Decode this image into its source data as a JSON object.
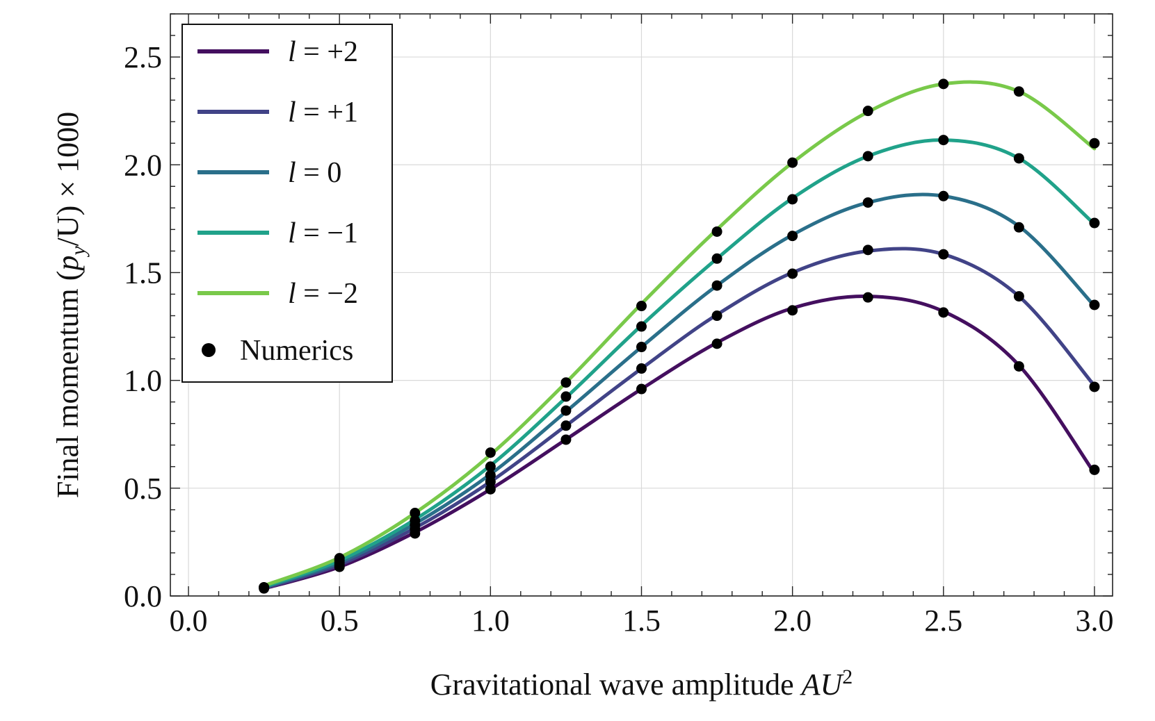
{
  "chart_data": {
    "type": "line",
    "title": "",
    "xlabel": {
      "main": "Gravitational wave amplitude ",
      "var": "AU",
      "sup": "2"
    },
    "ylabel": {
      "main": "Final momentum (",
      "var": "p",
      "sub": "y",
      "rest": "/U) × 1000"
    },
    "xlim": [
      -0.06,
      3.06
    ],
    "ylim": [
      0,
      2.7
    ],
    "xticks": [
      "0.0",
      "0.5",
      "1.0",
      "1.5",
      "2.0",
      "2.5",
      "3.0"
    ],
    "yticks": [
      "0.0",
      "0.5",
      "1.0",
      "1.5",
      "2.0",
      "2.5"
    ],
    "grid": true,
    "legend_position": "top-left",
    "series": [
      {
        "name": "l = +2",
        "label_var": "l",
        "label_rest": " = +2",
        "color": "#440f5f",
        "x": [
          0.25,
          0.5,
          0.75,
          1.0,
          1.25,
          1.5,
          1.75,
          2.0,
          2.25,
          2.5,
          2.75,
          3.0
        ],
        "y": [
          0.034,
          0.135,
          0.295,
          0.495,
          0.726,
          0.96,
          1.175,
          1.335,
          1.39,
          1.32,
          1.07,
          0.57
        ],
        "points": [
          0.04,
          0.135,
          0.29,
          0.495,
          0.725,
          0.96,
          1.17,
          1.325,
          1.385,
          1.315,
          1.065,
          0.585
        ]
      },
      {
        "name": "l = +1",
        "label_var": "l",
        "label_rest": " = +1",
        "color": "#414387",
        "x": [
          0.25,
          0.5,
          0.75,
          1.0,
          1.25,
          1.5,
          1.75,
          2.0,
          2.25,
          2.5,
          2.75,
          3.0
        ],
        "y": [
          0.036,
          0.145,
          0.315,
          0.53,
          0.79,
          1.055,
          1.305,
          1.5,
          1.6,
          1.585,
          1.39,
          0.975
        ],
        "points": [
          0.035,
          0.145,
          0.31,
          0.53,
          0.79,
          1.055,
          1.3,
          1.495,
          1.605,
          1.585,
          1.39,
          0.97
        ]
      },
      {
        "name": "l = 0",
        "label_var": "l",
        "label_rest": " = 0",
        "color": "#2a6f8a",
        "x": [
          0.25,
          0.5,
          0.75,
          1.0,
          1.25,
          1.5,
          1.75,
          2.0,
          2.25,
          2.5,
          2.75,
          3.0
        ],
        "y": [
          0.04,
          0.155,
          0.335,
          0.565,
          0.855,
          1.155,
          1.44,
          1.675,
          1.825,
          1.855,
          1.715,
          1.345
        ],
        "points": [
          0.04,
          0.155,
          0.33,
          0.56,
          0.86,
          1.155,
          1.44,
          1.67,
          1.825,
          1.855,
          1.71,
          1.35
        ]
      },
      {
        "name": "l = −1",
        "label_var": "l",
        "label_rest": " = −1",
        "color": "#20a28a",
        "x": [
          0.25,
          0.5,
          0.75,
          1.0,
          1.25,
          1.5,
          1.75,
          2.0,
          2.25,
          2.5,
          2.75,
          3.0
        ],
        "y": [
          0.043,
          0.165,
          0.355,
          0.605,
          0.92,
          1.255,
          1.565,
          1.845,
          2.04,
          2.115,
          2.03,
          1.725
        ],
        "points": [
          0.04,
          0.165,
          0.35,
          0.6,
          0.925,
          1.25,
          1.565,
          1.84,
          2.04,
          2.115,
          2.03,
          1.73
        ]
      },
      {
        "name": "l = −2",
        "label_var": "l",
        "label_rest": " = −2",
        "color": "#79c94a",
        "x": [
          0.25,
          0.5,
          0.75,
          1.0,
          1.25,
          1.5,
          1.75,
          2.0,
          2.25,
          2.5,
          2.75,
          3.0
        ],
        "y": [
          0.048,
          0.178,
          0.385,
          0.655,
          0.99,
          1.355,
          1.7,
          2.01,
          2.245,
          2.375,
          2.34,
          2.075
        ],
        "points": [
          0.04,
          0.175,
          0.385,
          0.665,
          0.99,
          1.345,
          1.69,
          2.01,
          2.25,
          2.375,
          2.34,
          2.1
        ]
      }
    ],
    "numerics_label": "Numerics",
    "numerics_color": "#000000"
  }
}
